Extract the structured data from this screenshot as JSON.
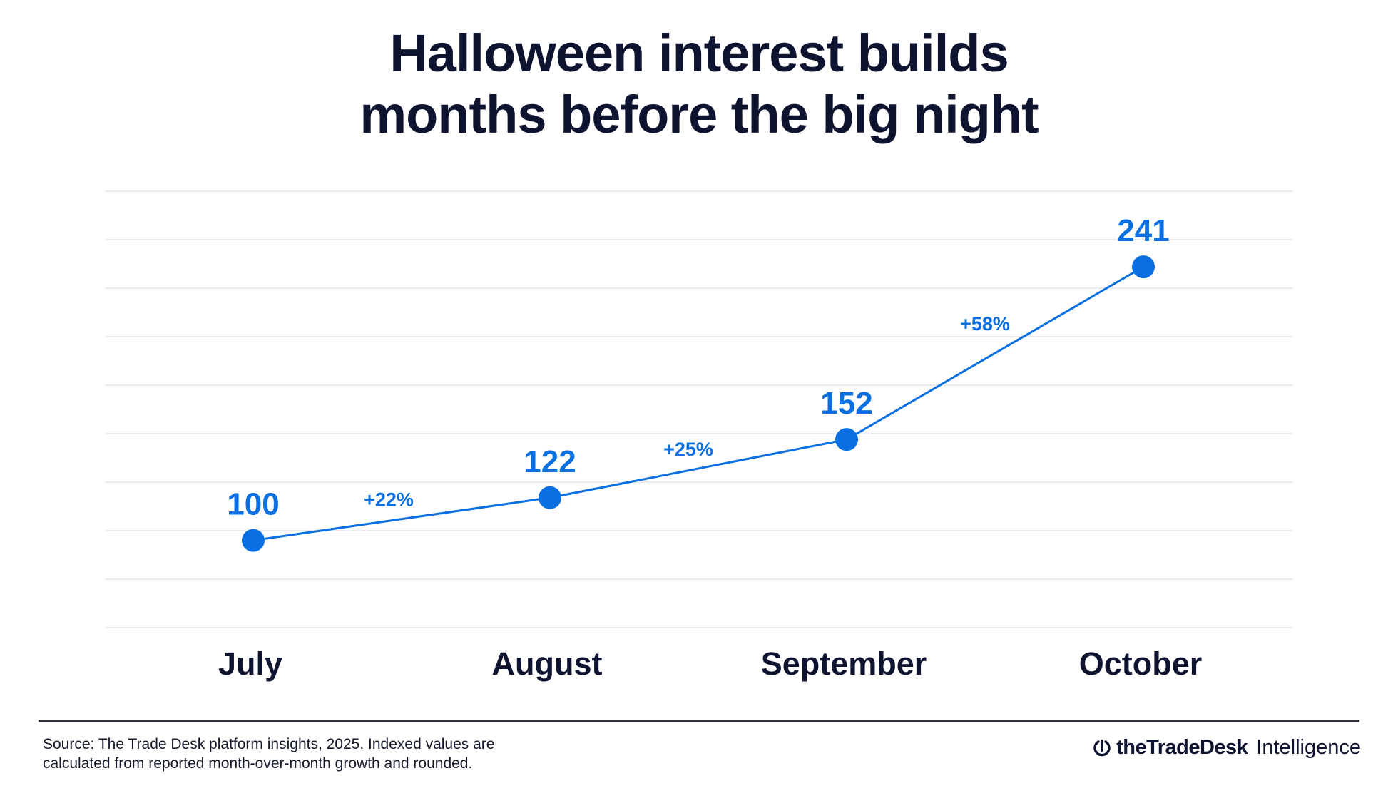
{
  "title_lines": [
    "Halloween interest builds",
    "months before the big night"
  ],
  "source_lines": [
    "Source: The Trade Desk platform insights, 2025. Indexed values are",
    "calculated from reported month-over-month growth and rounded."
  ],
  "brand": {
    "name": "theTradeDesk",
    "suffix": "Intelligence"
  },
  "colors": {
    "accent": "#0a6fe0",
    "text": "#0e1330",
    "grid": "#e3e5ec"
  },
  "chart_data": {
    "type": "line",
    "title": "Halloween interest builds months before the big night",
    "categories": [
      "July",
      "August",
      "September",
      "October"
    ],
    "values": [
      100,
      122,
      152,
      241
    ],
    "value_labels": [
      "100",
      "122",
      "152",
      "241"
    ],
    "growth_labels": [
      "+22%",
      "+25%",
      "+58%"
    ],
    "ylim": [
      55,
      280
    ],
    "grid": true,
    "y_axis_visible": false
  }
}
